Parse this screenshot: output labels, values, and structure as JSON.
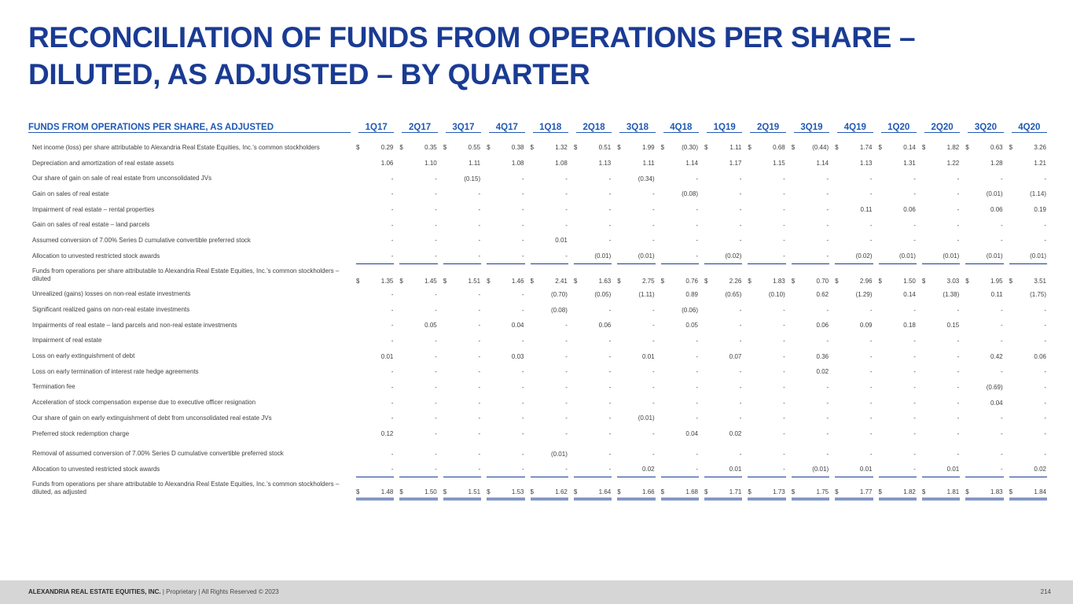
{
  "title": {
    "line1": "RECONCILIATION OF FUNDS FROM OPERATIONS PER SHARE –",
    "line2": "DILUTED, AS ADJUSTED – BY QUARTER"
  },
  "table": {
    "header": "FUNDS FROM OPERATIONS PER SHARE, AS ADJUSTED",
    "quarters": [
      "1Q17",
      "2Q17",
      "3Q17",
      "4Q17",
      "1Q18",
      "2Q18",
      "3Q18",
      "4Q18",
      "1Q19",
      "2Q19",
      "3Q19",
      "4Q19",
      "1Q20",
      "2Q20",
      "3Q20",
      "4Q20"
    ],
    "rows": [
      {
        "label": "Net income (loss) per share attributable to Alexandria Real Estate Equities, Inc.’s common stockholders",
        "dollar": true,
        "values": [
          "0.29",
          "0.35",
          "0.55",
          "0.38",
          "1.32",
          "0.51",
          "1.99",
          "(0.30)",
          "1.11",
          "0.68",
          "(0.44)",
          "1.74",
          "0.14",
          "1.82",
          "0.63",
          "3.26"
        ]
      },
      {
        "label": "Depreciation and amortization of real estate assets",
        "values": [
          "1.06",
          "1.10",
          "1.11",
          "1.08",
          "1.08",
          "1.13",
          "1.11",
          "1.14",
          "1.17",
          "1.15",
          "1.14",
          "1.13",
          "1.31",
          "1.22",
          "1.28",
          "1.21"
        ]
      },
      {
        "label": "Our share of gain on sale of real estate from unconsolidated JVs",
        "values": [
          "-",
          "-",
          "(0.15)",
          "-",
          "-",
          "-",
          "(0.34)",
          "-",
          "-",
          "-",
          "-",
          "-",
          "-",
          "-",
          "-",
          "-"
        ]
      },
      {
        "label": "Gain on sales of real estate",
        "values": [
          "-",
          "-",
          "-",
          "-",
          "-",
          "-",
          "-",
          "(0.08)",
          "-",
          "-",
          "-",
          "-",
          "-",
          "-",
          "(0.01)",
          "(1.14)"
        ]
      },
      {
        "label": "Impairment of real estate – rental properties",
        "values": [
          "-",
          "-",
          "-",
          "-",
          "-",
          "-",
          "-",
          "-",
          "-",
          "-",
          "-",
          "0.11",
          "0.06",
          "-",
          "0.06",
          "0.19"
        ]
      },
      {
        "label": "Gain on sales of real estate – land parcels",
        "values": [
          "-",
          "-",
          "-",
          "-",
          "-",
          "-",
          "-",
          "-",
          "-",
          "-",
          "-",
          "-",
          "-",
          "-",
          "-",
          "-"
        ]
      },
      {
        "label": "Assumed conversion of 7.00% Series D cumulative convertible preferred stock",
        "values": [
          "-",
          "-",
          "-",
          "-",
          "0.01",
          "-",
          "-",
          "-",
          "-",
          "-",
          "-",
          "-",
          "-",
          "-",
          "-",
          "-"
        ]
      },
      {
        "label": "Allocation to unvested restricted stock awards",
        "underline": "single",
        "values": [
          "-",
          "-",
          "-",
          "-",
          "-",
          "(0.01)",
          "(0.01)",
          "-",
          "(0.02)",
          "-",
          "-",
          "(0.02)",
          "(0.01)",
          "(0.01)",
          "(0.01)",
          "(0.01)"
        ]
      },
      {
        "label": "Funds from operations per share attributable to Alexandria Real Estate Equities, Inc.’s common stockholders – diluted",
        "dollar": true,
        "tall": true,
        "values": [
          "1.35",
          "1.45",
          "1.51",
          "1.46",
          "2.41",
          "1.63",
          "2.75",
          "0.76",
          "2.26",
          "1.83",
          "0.70",
          "2.96",
          "1.50",
          "3.03",
          "1.95",
          "3.51"
        ]
      },
      {
        "label": "Unrealized (gains) losses on non-real estate investments",
        "values": [
          "-",
          "-",
          "-",
          "-",
          "(0.70)",
          "(0.05)",
          "(1.11)",
          "0.89",
          "(0.65)",
          "(0.10)",
          "0.62",
          "(1.29)",
          "0.14",
          "(1.38)",
          "0.11",
          "(1.75)"
        ]
      },
      {
        "label": "Significant realized gains on non-real estate investments",
        "values": [
          "-",
          "-",
          "-",
          "-",
          "(0.08)",
          "-",
          "-",
          "(0.06)",
          "-",
          "-",
          "-",
          "-",
          "-",
          "-",
          "-",
          "-"
        ]
      },
      {
        "label": "Impairments of real estate – land parcels and non-real estate investments",
        "values": [
          "-",
          "0.05",
          "-",
          "0.04",
          "-",
          "0.06",
          "-",
          "0.05",
          "-",
          "-",
          "0.06",
          "0.09",
          "0.18",
          "0.15",
          "-",
          "-"
        ]
      },
      {
        "label": "Impairment of real estate",
        "values": [
          "-",
          "-",
          "-",
          "-",
          "-",
          "-",
          "-",
          "-",
          "-",
          "-",
          "-",
          "-",
          "-",
          "-",
          "-",
          "-"
        ]
      },
      {
        "label": "Loss on early extinguishment of debt",
        "values": [
          "0.01",
          "-",
          "-",
          "0.03",
          "-",
          "-",
          "0.01",
          "-",
          "0.07",
          "-",
          "0.36",
          "-",
          "-",
          "-",
          "0.42",
          "0.06"
        ]
      },
      {
        "label": "Loss on early termination of interest rate hedge agreements",
        "values": [
          "-",
          "-",
          "-",
          "-",
          "-",
          "-",
          "-",
          "-",
          "-",
          "-",
          "0.02",
          "-",
          "-",
          "-",
          "-",
          "-"
        ]
      },
      {
        "label": "Termination fee",
        "values": [
          "-",
          "-",
          "-",
          "-",
          "-",
          "-",
          "-",
          "-",
          "-",
          "-",
          "-",
          "-",
          "-",
          "-",
          "(0.69)",
          "-"
        ]
      },
      {
        "label": "Acceleration of stock compensation expense due to executive officer resignation",
        "values": [
          "-",
          "-",
          "-",
          "-",
          "-",
          "-",
          "-",
          "-",
          "-",
          "-",
          "-",
          "-",
          "-",
          "-",
          "0.04",
          "-"
        ]
      },
      {
        "label": "Our share of gain on early extinguishment of debt from unconsolidated real estate JVs",
        "values": [
          "-",
          "-",
          "-",
          "-",
          "-",
          "-",
          "(0.01)",
          "-",
          "-",
          "-",
          "-",
          "-",
          "-",
          "-",
          "-",
          "-"
        ]
      },
      {
        "label": "Preferred stock redemption charge",
        "values": [
          "0.12",
          "-",
          "-",
          "-",
          "-",
          "-",
          "-",
          "0.04",
          "0.02",
          "-",
          "-",
          "-",
          "-",
          "-",
          "-",
          "-"
        ]
      },
      {
        "label": "Removal of assumed conversion of 7.00% Series D cumulative convertible preferred stock",
        "gapBefore": true,
        "values": [
          "-",
          "-",
          "-",
          "-",
          "(0.01)",
          "-",
          "-",
          "-",
          "-",
          "-",
          "-",
          "-",
          "-",
          "-",
          "-",
          "-"
        ]
      },
      {
        "label": "Allocation to unvested restricted stock awards",
        "underline": "single",
        "values": [
          "-",
          "-",
          "-",
          "-",
          "-",
          "-",
          "0.02",
          "-",
          "0.01",
          "-",
          "(0.01)",
          "0.01",
          "-",
          "0.01",
          "-",
          "0.02"
        ]
      },
      {
        "label": "Funds from operations per share attributable to Alexandria Real Estate Equities, Inc.’s common stockholders – diluted, as adjusted",
        "dollar": true,
        "tall": true,
        "underline": "double",
        "values": [
          "1.48",
          "1.50",
          "1.51",
          "1.53",
          "1.62",
          "1.64",
          "1.66",
          "1.68",
          "1.71",
          "1.73",
          "1.75",
          "1.77",
          "1.82",
          "1.81",
          "1.83",
          "1.84"
        ]
      }
    ]
  },
  "footer": {
    "company": "ALEXANDRIA REAL ESTATE EQUITIES, INC.",
    "rest": " | Proprietary | All Rights Reserved © 2023",
    "page": "214"
  }
}
